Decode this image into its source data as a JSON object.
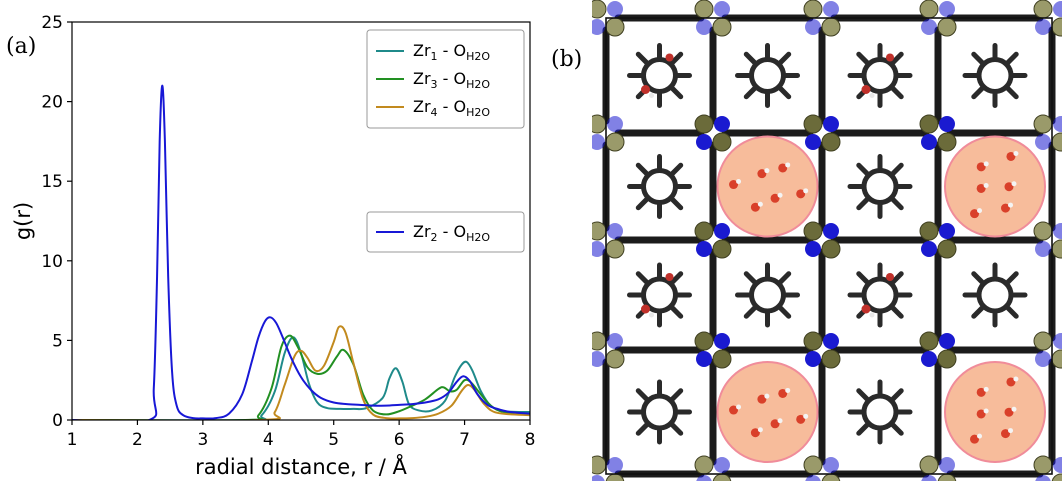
{
  "panel_a_label": "(a)",
  "panel_b_label": "(b)",
  "chart_data": {
    "type": "line",
    "xlabel": "radial distance, r / Å",
    "ylabel": "g(r)",
    "xlim": [
      1,
      8
    ],
    "ylim": [
      0,
      25
    ],
    "xticks": [
      1,
      2,
      3,
      4,
      5,
      6,
      7,
      8
    ],
    "yticks": [
      0,
      5,
      10,
      15,
      20,
      25
    ],
    "legend_placement": "top-right",
    "series": [
      {
        "name": "Zr1 - OH2O",
        "label_parts": {
          "el": "Zr",
          "sub1": "1",
          "mid": " - O",
          "sub2": "H2O"
        },
        "color": "#1f8a8a",
        "legend_group": "upper",
        "x": [
          1.0,
          3.7,
          3.9,
          4.1,
          4.25,
          4.38,
          4.5,
          4.62,
          4.75,
          4.9,
          5.1,
          5.3,
          5.5,
          5.75,
          5.85,
          5.95,
          6.05,
          6.15,
          6.3,
          6.5,
          6.7,
          6.85,
          6.95,
          7.03,
          7.12,
          7.25,
          7.4,
          7.6,
          8.0
        ],
        "y": [
          0,
          0,
          0.3,
          1.8,
          4.2,
          5.2,
          4.2,
          2.3,
          1.1,
          0.75,
          0.7,
          0.7,
          0.75,
          1.4,
          2.6,
          3.25,
          2.4,
          1.0,
          0.6,
          0.6,
          1.2,
          2.7,
          3.45,
          3.65,
          3.1,
          1.8,
          0.9,
          0.55,
          0.5
        ]
      },
      {
        "name": "Zr3 - OH2O",
        "label_parts": {
          "el": "Zr",
          "sub1": "3",
          "mid": " - O",
          "sub2": "H2O"
        },
        "color": "#229022",
        "legend_group": "upper",
        "x": [
          1.0,
          3.65,
          3.85,
          4.05,
          4.2,
          4.33,
          4.45,
          4.6,
          4.75,
          4.9,
          5.05,
          5.15,
          5.3,
          5.45,
          5.6,
          5.8,
          6.0,
          6.2,
          6.4,
          6.6,
          6.68,
          6.78,
          6.88,
          7.0,
          7.1,
          7.25,
          7.4,
          7.6,
          8.0
        ],
        "y": [
          0,
          0,
          0.3,
          2.0,
          4.6,
          5.3,
          4.6,
          3.3,
          2.9,
          3.1,
          4.0,
          4.4,
          3.5,
          1.6,
          0.6,
          0.35,
          0.55,
          0.9,
          1.3,
          1.95,
          2.05,
          1.8,
          1.9,
          2.5,
          2.35,
          1.6,
          0.9,
          0.5,
          0.4
        ]
      },
      {
        "name": "Zr4 - OH2O",
        "label_parts": {
          "el": "Zr",
          "sub1": "4",
          "mid": " - O",
          "sub2": "H2O"
        },
        "color": "#c28a1e",
        "legend_group": "upper",
        "x": [
          1.0,
          3.9,
          4.1,
          4.25,
          4.4,
          4.5,
          4.6,
          4.72,
          4.85,
          5.0,
          5.08,
          5.18,
          5.3,
          5.45,
          5.6,
          5.8,
          6.0,
          6.2,
          6.4,
          6.6,
          6.8,
          6.95,
          7.05,
          7.15,
          7.3,
          7.5,
          8.0
        ],
        "y": [
          0,
          0,
          0.5,
          2.2,
          4.0,
          4.35,
          3.9,
          3.1,
          3.4,
          4.9,
          5.85,
          5.5,
          3.6,
          1.3,
          0.35,
          0.12,
          0.1,
          0.12,
          0.2,
          0.4,
          0.9,
          1.8,
          2.2,
          1.9,
          1.0,
          0.45,
          0.3
        ]
      },
      {
        "name": "Zr2 - OH2O",
        "label_parts": {
          "el": "Zr",
          "sub1": "2",
          "mid": " - O",
          "sub2": "H2O"
        },
        "color": "#1818d6",
        "legend_group": "lower",
        "x": [
          1.0,
          2.18,
          2.25,
          2.3,
          2.34,
          2.38,
          2.42,
          2.47,
          2.53,
          2.6,
          2.7,
          2.85,
          3.0,
          3.2,
          3.4,
          3.6,
          3.75,
          3.85,
          3.95,
          4.03,
          4.12,
          4.22,
          4.35,
          4.5,
          4.65,
          4.8,
          5.0,
          5.2,
          5.4,
          5.6,
          5.8,
          6.0,
          6.2,
          6.4,
          6.6,
          6.75,
          6.88,
          6.98,
          7.08,
          7.2,
          7.35,
          7.5,
          7.7,
          8.0
        ],
        "y": [
          0,
          0,
          2.0,
          9.0,
          17.5,
          21.0,
          17.5,
          9.0,
          3.0,
          0.9,
          0.3,
          0.12,
          0.1,
          0.12,
          0.4,
          1.6,
          3.7,
          5.2,
          6.2,
          6.45,
          6.1,
          5.2,
          3.9,
          2.7,
          1.9,
          1.4,
          1.1,
          1.0,
          0.95,
          0.9,
          0.9,
          0.95,
          1.0,
          1.1,
          1.3,
          1.7,
          2.4,
          2.75,
          2.45,
          1.6,
          0.95,
          0.7,
          0.5,
          0.4
        ]
      }
    ]
  }
}
